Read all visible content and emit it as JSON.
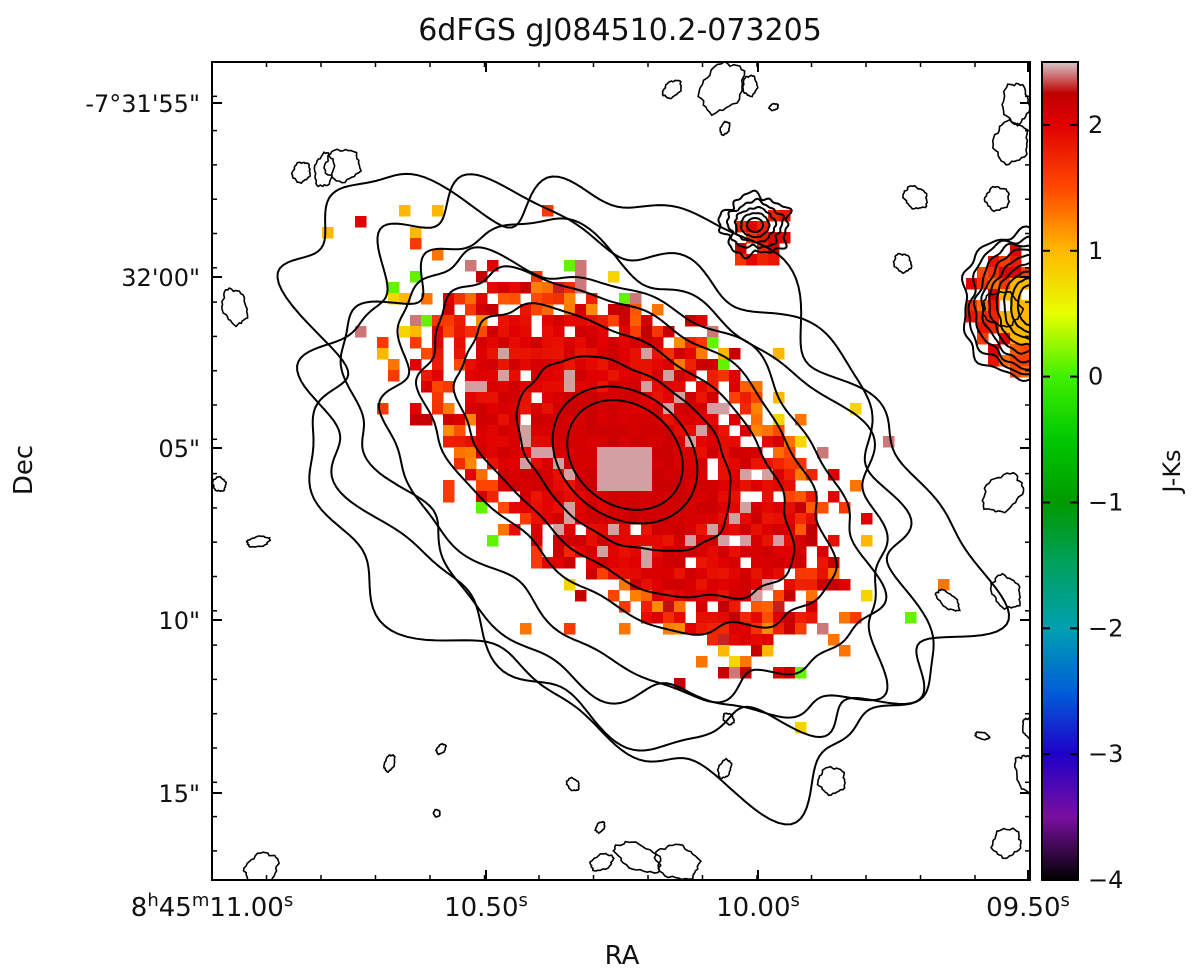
{
  "chart_data": {
    "type": "heatmap",
    "title": "6dFGS gJ084510.2-073205",
    "xlabel": "RA",
    "ylabel": "Dec",
    "x_ticks": [
      {
        "value": 0,
        "main": "8",
        "sup1": "h",
        "mid": "45",
        "sup2": "m",
        "rest": "11.00",
        "sup3": "s"
      },
      {
        "value": 50,
        "main": "",
        "sup1": "",
        "mid": "",
        "sup2": "",
        "rest": "10.50",
        "sup3": "s"
      },
      {
        "value": 100,
        "main": "",
        "sup1": "",
        "mid": "",
        "sup2": "",
        "rest": "10.00",
        "sup3": "s"
      },
      {
        "value": 150,
        "main": "",
        "sup1": "",
        "mid": "",
        "sup2": "",
        "rest": "09.50",
        "sup3": "s"
      }
    ],
    "y_ticks": [
      {
        "value": -7.532,
        "label": "-7°31'55\""
      },
      {
        "value": -7.533,
        "label": "32'00\""
      },
      {
        "value": -7.534,
        "label": "05\""
      },
      {
        "value": -7.535,
        "label": "10\""
      },
      {
        "value": -7.536,
        "label": "15\""
      }
    ],
    "colorbar": {
      "label": "J-Ks",
      "range": [
        -4,
        2.5
      ],
      "ticks": [
        "2",
        "1",
        "0",
        "−1",
        "−2",
        "−3",
        "−4"
      ],
      "tick_values": [
        2,
        1,
        0,
        -1,
        -2,
        -3,
        -4
      ],
      "stops": [
        {
          "v": -4.0,
          "c": "#000000"
        },
        {
          "v": -3.5,
          "c": "#7a0fa0"
        },
        {
          "v": -3.0,
          "c": "#1f00c8"
        },
        {
          "v": -2.5,
          "c": "#005fd8"
        },
        {
          "v": -2.0,
          "c": "#00a0b0"
        },
        {
          "v": -1.5,
          "c": "#00a060"
        },
        {
          "v": -1.0,
          "c": "#009a00"
        },
        {
          "v": -0.5,
          "c": "#00c800"
        },
        {
          "v": 0.0,
          "c": "#40f000"
        },
        {
          "v": 0.5,
          "c": "#e6ff00"
        },
        {
          "v": 1.0,
          "c": "#ffb800"
        },
        {
          "v": 1.5,
          "c": "#ff4800"
        },
        {
          "v": 2.0,
          "c": "#e00000"
        },
        {
          "v": 2.25,
          "c": "#c00000"
        },
        {
          "v": 2.5,
          "c": "#d6c8c8"
        }
      ]
    },
    "galaxy": {
      "center_jks": 2.1,
      "core_jks": 2.45,
      "edge_jks": 1.2,
      "noise_jks_values": [
        0.1,
        0.8,
        1.0,
        1.3,
        1.6,
        2.0,
        2.2,
        2.4
      ]
    },
    "contour_levels": 9
  }
}
